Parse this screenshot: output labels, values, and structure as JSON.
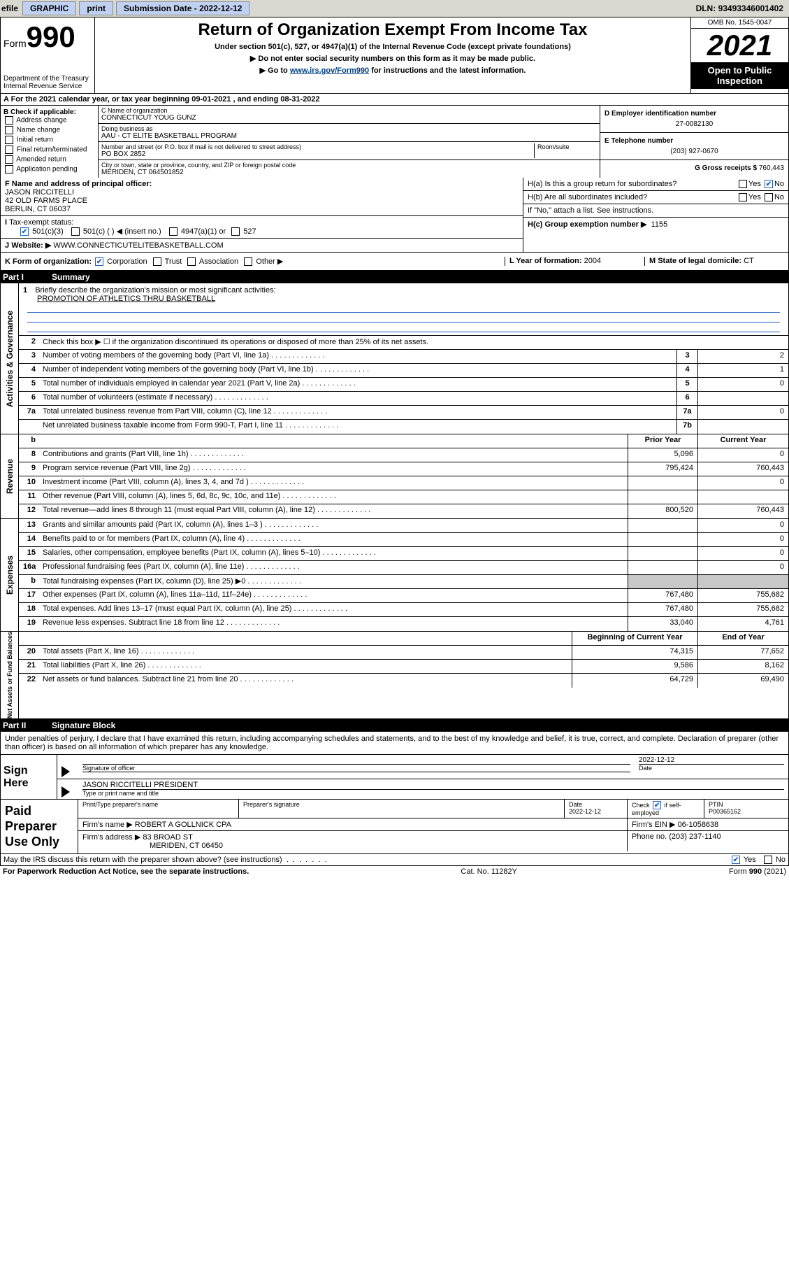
{
  "topbar": {
    "efile_prefix": "efile",
    "efile_label": "GRAPHIC",
    "print_btn": "print",
    "sub_date_label": "Submission Date - ",
    "sub_date_value": "2022-12-12",
    "dln_label": "DLN: ",
    "dln_value": "93493346001402"
  },
  "header": {
    "form_prefix": "Form",
    "form_number": "990",
    "dept1": "Department of the Treasury",
    "dept2": "Internal Revenue Service",
    "title": "Return of Organization Exempt From Income Tax",
    "sub1": "Under section 501(c), 527, or 4947(a)(1) of the Internal Revenue Code (except private foundations)",
    "sub2": "▶ Do not enter social security numbers on this form as it may be made public.",
    "sub3_pre": "▶ Go to ",
    "sub3_link": "www.irs.gov/Form990",
    "sub3_post": " for instructions and the latest information.",
    "omb": "OMB No. 1545-0047",
    "year": "2021",
    "open_pub1": "Open to Public",
    "open_pub2": "Inspection"
  },
  "line_a": {
    "prefix": "A For the 2021 calendar year, or tax year beginning ",
    "begin": "09-01-2021",
    "mid": " , and ending ",
    "end": "08-31-2022"
  },
  "colB": {
    "label": "B Check if applicable:",
    "opts": [
      "Address change",
      "Name change",
      "Initial return",
      "Final return/terminated",
      "Amended return",
      "Application pending"
    ]
  },
  "colC": {
    "name_lab": "C Name of organization",
    "name": "CONNECTICUT YOUG GUNZ",
    "dba_lab": "Doing business as",
    "dba": "AAU - CT ELITE BASKETBALL PROGRAM",
    "addr_lab": "Number and street (or P.O. box if mail is not delivered to street address)",
    "room_lab": "Room/suite",
    "addr": "PO BOX 2852",
    "city_lab": "City or town, state or province, country, and ZIP or foreign postal code",
    "city": "MERIDEN, CT  064501852"
  },
  "colD": {
    "lab": "D Employer identification number",
    "val": "27-0082130"
  },
  "colE": {
    "lab": "E Telephone number",
    "val": "(203) 927-0670"
  },
  "colG": {
    "lab": "G Gross receipts $",
    "val": "760,443"
  },
  "F": {
    "lab": "F Name and address of principal officer:",
    "name": "JASON RICCITELLI",
    "addr1": "42 OLD FARMS PLACE",
    "addr2": "BERLIN, CT  06037"
  },
  "I": {
    "lab": "Tax-exempt status:",
    "o1": "501(c)(3)",
    "o2": "501(c) (  ) ◀ (insert no.)",
    "o3": "4947(a)(1) or",
    "o4": "527"
  },
  "J": {
    "lab": "J",
    "text": "Website: ▶",
    "val": "WWW.CONNECTICUTELITEBASKETBALL.COM"
  },
  "K": {
    "lab": "K Form of organization:",
    "o1": "Corporation",
    "o2": "Trust",
    "o3": "Association",
    "o4": "Other ▶"
  },
  "H": {
    "ha": "H(a)  Is this a group return for subordinates?",
    "hb": "H(b)  Are all subordinates included?",
    "hb_note": "If \"No,\" attach a list. See instructions.",
    "hc_lab": "H(c)  Group exemption number ▶",
    "hc_val": "1155",
    "yes": "Yes",
    "no": "No"
  },
  "L": {
    "lab": "L Year of formation:",
    "val": "2004"
  },
  "M": {
    "lab": "M State of legal domicile:",
    "val": "CT"
  },
  "part1": {
    "num": "Part I",
    "title": "Summary"
  },
  "mission": {
    "num": "1",
    "lab": "Briefly describe the organization's mission or most significant activities:",
    "val": "PROMOTION OF ATHLETICS THRU BASKETBALL"
  },
  "gov": {
    "vtab": "Activities & Governance",
    "rows": [
      {
        "n": "2",
        "t": "Check this box ▶ ☐  if the organization discontinued its operations or disposed of more than 25% of its net assets."
      },
      {
        "n": "3",
        "t": "Number of voting members of the governing body (Part VI, line 1a)",
        "ln": "3",
        "v": "2"
      },
      {
        "n": "4",
        "t": "Number of independent voting members of the governing body (Part VI, line 1b)",
        "ln": "4",
        "v": "1"
      },
      {
        "n": "5",
        "t": "Total number of individuals employed in calendar year 2021 (Part V, line 2a)",
        "ln": "5",
        "v": "0"
      },
      {
        "n": "6",
        "t": "Total number of volunteers (estimate if necessary)",
        "ln": "6",
        "v": ""
      },
      {
        "n": "7a",
        "t": "Total unrelated business revenue from Part VIII, column (C), line 12",
        "ln": "7a",
        "v": "0"
      },
      {
        "n": "",
        "t": "Net unrelated business taxable income from Form 990-T, Part I, line 11",
        "ln": "7b",
        "v": ""
      }
    ]
  },
  "rev": {
    "vtab": "Revenue",
    "head_b": "b",
    "head_py": "Prior Year",
    "head_cy": "Current Year",
    "rows": [
      {
        "n": "8",
        "t": "Contributions and grants (Part VIII, line 1h)",
        "py": "5,096",
        "cy": "0"
      },
      {
        "n": "9",
        "t": "Program service revenue (Part VIII, line 2g)",
        "py": "795,424",
        "cy": "760,443"
      },
      {
        "n": "10",
        "t": "Investment income (Part VIII, column (A), lines 3, 4, and 7d )",
        "py": "",
        "cy": "0"
      },
      {
        "n": "11",
        "t": "Other revenue (Part VIII, column (A), lines 5, 6d, 8c, 9c, 10c, and 11e)",
        "py": "",
        "cy": ""
      },
      {
        "n": "12",
        "t": "Total revenue—add lines 8 through 11 (must equal Part VIII, column (A), line 12)",
        "py": "800,520",
        "cy": "760,443"
      }
    ]
  },
  "exp": {
    "vtab": "Expenses",
    "rows": [
      {
        "n": "13",
        "t": "Grants and similar amounts paid (Part IX, column (A), lines 1–3 )",
        "py": "",
        "cy": "0"
      },
      {
        "n": "14",
        "t": "Benefits paid to or for members (Part IX, column (A), line 4)",
        "py": "",
        "cy": "0"
      },
      {
        "n": "15",
        "t": "Salaries, other compensation, employee benefits (Part IX, column (A), lines 5–10)",
        "py": "",
        "cy": "0"
      },
      {
        "n": "16a",
        "t": "Professional fundraising fees (Part IX, column (A), line 11e)",
        "py": "",
        "cy": "0"
      },
      {
        "n": "b",
        "t": "Total fundraising expenses (Part IX, column (D), line 25) ▶0",
        "py": "SHADE",
        "cy": "SHADE"
      },
      {
        "n": "17",
        "t": "Other expenses (Part IX, column (A), lines 11a–11d, 11f–24e)",
        "py": "767,480",
        "cy": "755,682"
      },
      {
        "n": "18",
        "t": "Total expenses. Add lines 13–17 (must equal Part IX, column (A), line 25)",
        "py": "767,480",
        "cy": "755,682"
      },
      {
        "n": "19",
        "t": "Revenue less expenses. Subtract line 18 from line 12",
        "py": "33,040",
        "cy": "4,761"
      }
    ]
  },
  "na": {
    "vtab": "Net Assets or Fund Balances",
    "head_py": "Beginning of Current Year",
    "head_cy": "End of Year",
    "rows": [
      {
        "n": "20",
        "t": "Total assets (Part X, line 16)",
        "py": "74,315",
        "cy": "77,652"
      },
      {
        "n": "21",
        "t": "Total liabilities (Part X, line 26)",
        "py": "9,586",
        "cy": "8,162"
      },
      {
        "n": "22",
        "t": "Net assets or fund balances. Subtract line 21 from line 20",
        "py": "64,729",
        "cy": "69,490"
      }
    ]
  },
  "part2": {
    "num": "Part II",
    "title": "Signature Block"
  },
  "decl": "Under penalties of perjury, I declare that I have examined this return, including accompanying schedules and statements, and to the best of my knowledge and belief, it is true, correct, and complete. Declaration of preparer (other than officer) is based on all information of which preparer has any knowledge.",
  "sign": {
    "label": "Sign Here",
    "sig_lab": "Signature of officer",
    "date_lab": "Date",
    "date_val": "2022-12-12",
    "name": "JASON RICCITELLI  PRESIDENT",
    "name_lab": "Type or print name and title"
  },
  "prep": {
    "label": "Paid Preparer Use Only",
    "h1": "Print/Type preparer's name",
    "h2": "Preparer's signature",
    "h3": "Date",
    "h3v": "2022-12-12",
    "h4": "Check ☑ if self-employed",
    "h5": "PTIN",
    "h5v": "P00365162",
    "firm_lab": "Firm's name    ▶",
    "firm": "ROBERT A GOLLNICK CPA",
    "ein_lab": "Firm's EIN ▶",
    "ein": "06-1058638",
    "addr_lab": "Firm's address ▶",
    "addr1": "83 BROAD ST",
    "addr2": "MERIDEN, CT  06450",
    "phone_lab": "Phone no.",
    "phone": "(203) 237-1140"
  },
  "discuss": {
    "text": "May the IRS discuss this return with the preparer shown above? (see instructions)",
    "yes": "Yes",
    "no": "No"
  },
  "footer": {
    "left": "For Paperwork Reduction Act Notice, see the separate instructions.",
    "mid": "Cat. No. 11282Y",
    "right_pre": "Form ",
    "right_b": "990",
    "right_post": " (2021)"
  },
  "colors": {
    "link": "#004080",
    "checkblue": "#2060c0"
  }
}
